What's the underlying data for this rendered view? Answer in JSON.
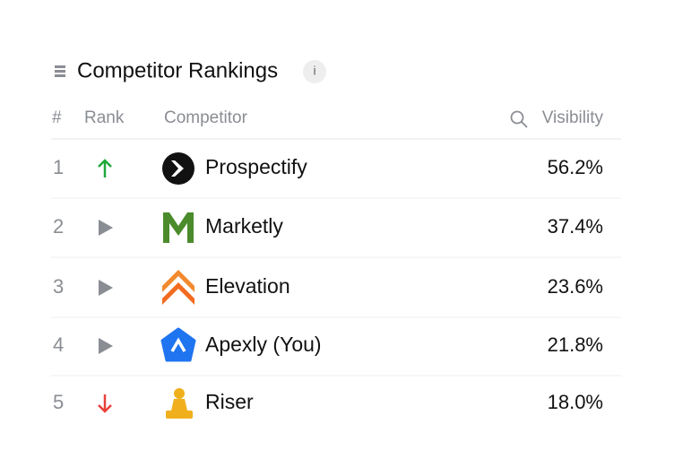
{
  "header": {
    "title": "Competitor Rankings",
    "info": "i"
  },
  "table": {
    "columns": [
      "#",
      "Rank",
      "Competitor",
      "Visibility"
    ],
    "rows": [
      {
        "number": "1",
        "trend": "up",
        "competitor": "Prospectify",
        "visibility": "56.2%"
      },
      {
        "number": "2",
        "trend": "same",
        "competitor": "Marketly",
        "visibility": "37.4%"
      },
      {
        "number": "3",
        "trend": "same",
        "competitor": "Elevation",
        "visibility": "23.6%"
      },
      {
        "number": "4",
        "trend": "same",
        "competitor": "Apexly (You)",
        "visibility": "21.8%"
      },
      {
        "number": "5",
        "trend": "down",
        "competitor": "Riser",
        "visibility": "18.0%"
      }
    ]
  }
}
